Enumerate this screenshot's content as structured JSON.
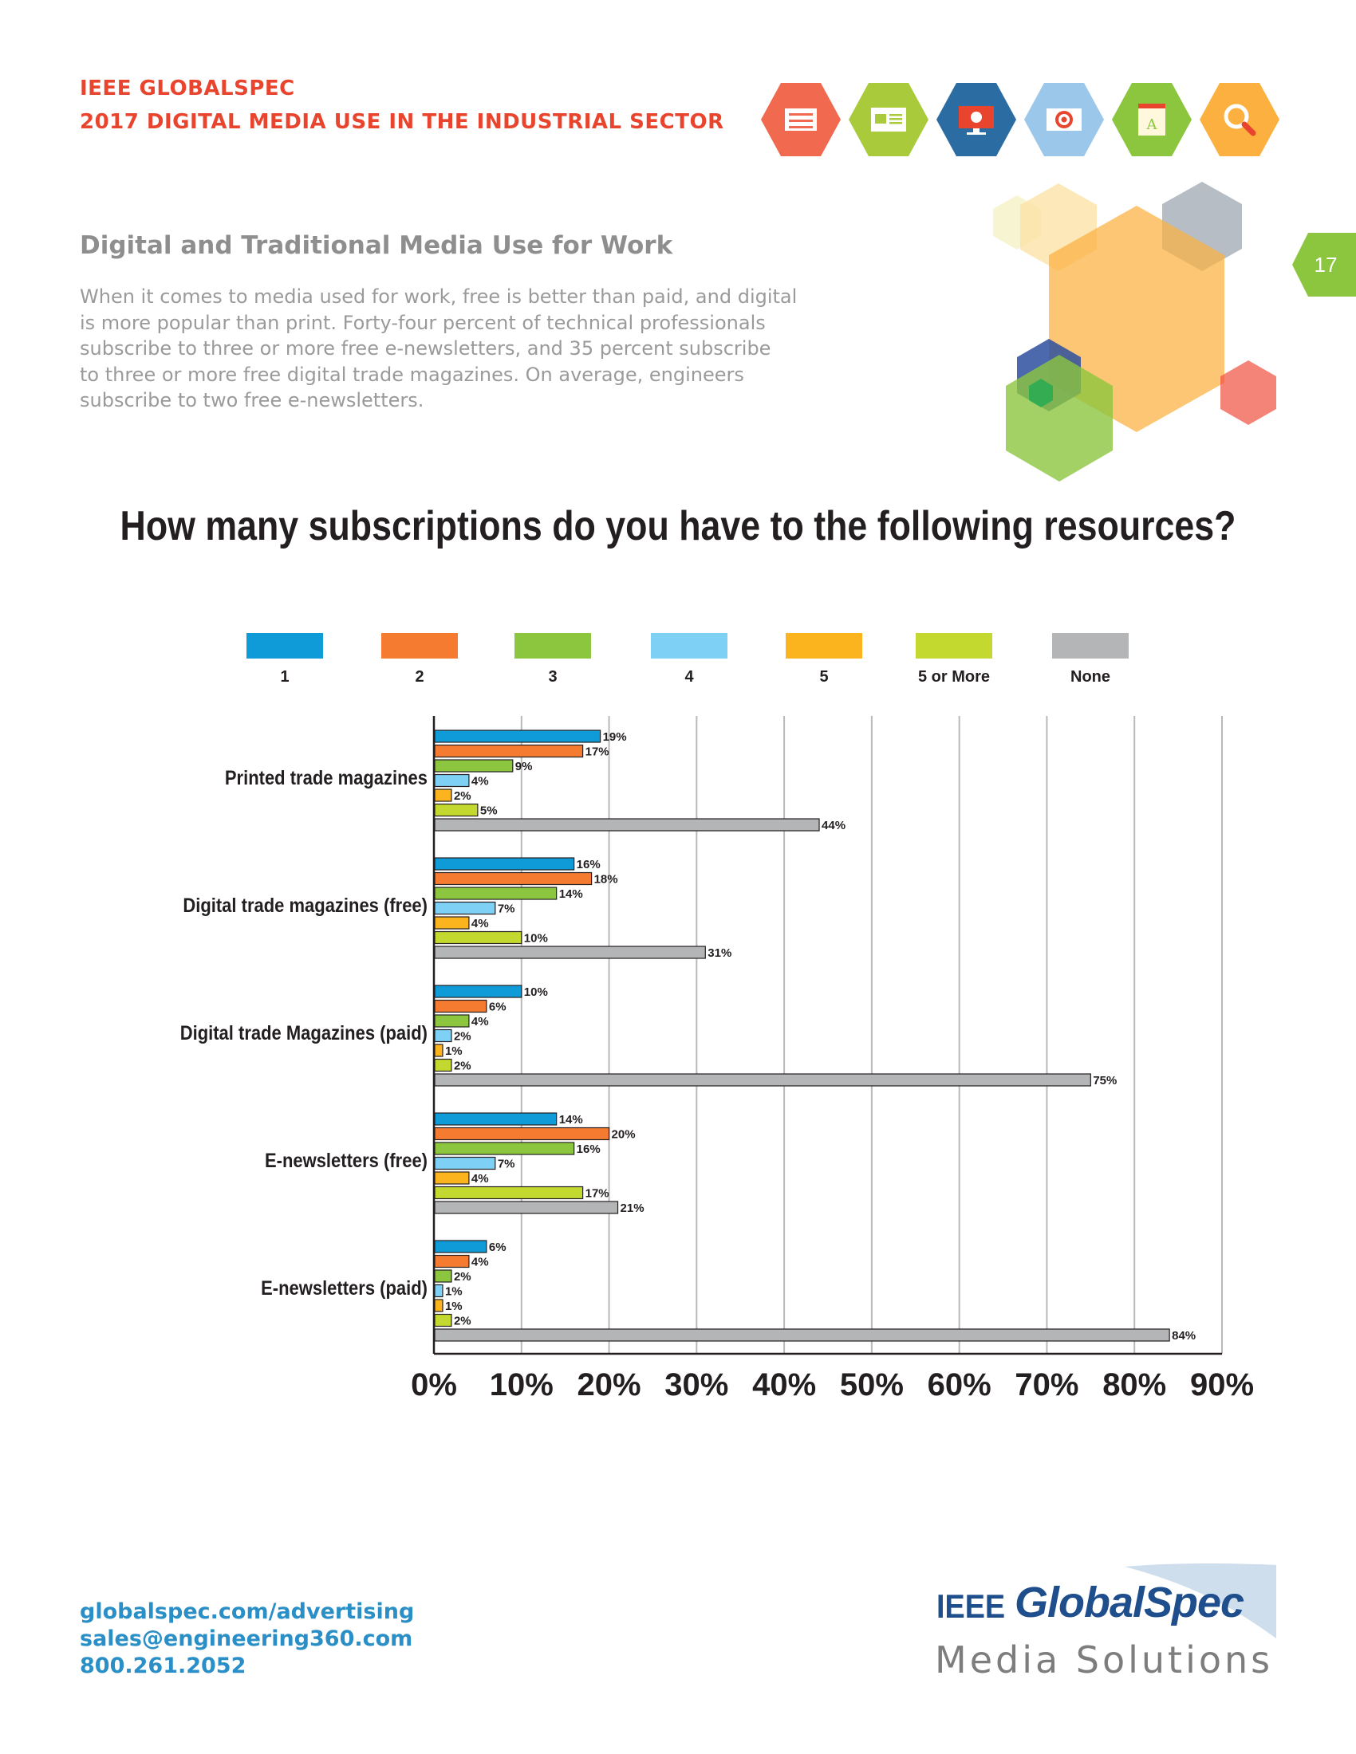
{
  "header": {
    "line1": "IEEE GLOBALSPEC",
    "line2": "2017 DIGITAL MEDIA USE IN THE INDUSTRIAL SECTOR",
    "icons": [
      {
        "name": "newspaper-icon",
        "color": "#f16a4f"
      },
      {
        "name": "browser-window-icon",
        "color": "#a9cb3b"
      },
      {
        "name": "monitor-icon",
        "color": "#2b6ca3"
      },
      {
        "name": "email-target-icon",
        "color": "#9bc7ea"
      },
      {
        "name": "book-icon",
        "color": "#8cc63f"
      },
      {
        "name": "magnifier-icon",
        "color": "#fbb040"
      }
    ]
  },
  "page_number": "17",
  "section": {
    "title": "Digital and Traditional Media Use for Work",
    "intro_lines": [
      "When it comes to media used for work, free is better than paid, and digital",
      "is more popular than print. Forty-four percent of technical professionals",
      "subscribe to three or more free e-newsletters, and 35 percent subscribe",
      "to three or more free digital trade magazines. On average, engineers",
      "subscribe to two free e-newsletters."
    ]
  },
  "chart_data": {
    "type": "bar",
    "orientation": "horizontal",
    "title": "How many subscriptions do you have to the following resources?",
    "categories": [
      "Printed trade magazines",
      "Digital trade magazines (free)",
      "Digital trade Magazines (paid)",
      "E-newsletters (free)",
      "E-newsletters (paid)"
    ],
    "series": [
      {
        "name": "1",
        "color": "#0f9ad8",
        "values": [
          19,
          16,
          10,
          14,
          6
        ]
      },
      {
        "name": "2",
        "color": "#f47b30",
        "values": [
          17,
          18,
          6,
          20,
          4
        ]
      },
      {
        "name": "3",
        "color": "#8cc63f",
        "values": [
          9,
          14,
          4,
          16,
          2
        ]
      },
      {
        "name": "4",
        "color": "#7fd0f5",
        "values": [
          4,
          7,
          2,
          7,
          1
        ]
      },
      {
        "name": "5",
        "color": "#fbb31e",
        "values": [
          2,
          4,
          1,
          4,
          1
        ]
      },
      {
        "name": "5 or More",
        "color": "#c4d930",
        "values": [
          5,
          10,
          2,
          17,
          2
        ]
      },
      {
        "name": "None",
        "color": "#b4b5b7",
        "values": [
          44,
          31,
          75,
          21,
          84
        ]
      }
    ],
    "xlim": [
      0,
      90
    ],
    "xticks": [
      "0%",
      "10%",
      "20%",
      "30%",
      "40%",
      "50%",
      "60%",
      "70%",
      "80%",
      "90%"
    ],
    "value_suffix": "%",
    "grid": true,
    "legend_position": "top"
  },
  "footer": {
    "website": "globalspec.com/advertising",
    "email": "sales@engineering360.com",
    "phone": "800.261.2052"
  },
  "brand": {
    "ieee": "IEEE",
    "name": "GlobalSpec",
    "tagline": "Media Solutions"
  }
}
